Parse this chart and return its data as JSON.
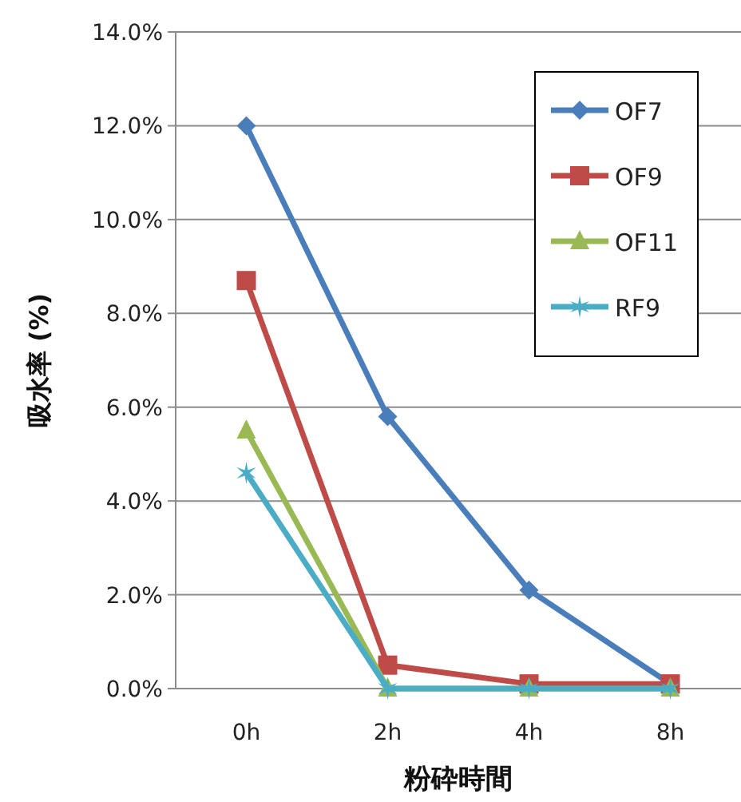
{
  "chart_data": {
    "type": "line",
    "xlabel": "粉砕時間",
    "ylabel": "吸水率 (%)",
    "categories": [
      "0h",
      "2h",
      "4h",
      "8h"
    ],
    "series": [
      {
        "name": "OF7",
        "color": "#4a7ebb",
        "marker": "diamond",
        "values": [
          12.0,
          5.8,
          2.1,
          0.1
        ]
      },
      {
        "name": "OF9",
        "color": "#be4b48",
        "marker": "square",
        "values": [
          8.7,
          0.5,
          0.1,
          0.1
        ]
      },
      {
        "name": "OF11",
        "color": "#98b954",
        "marker": "triangle",
        "values": [
          5.5,
          0.0,
          0.0,
          0.0
        ]
      },
      {
        "name": "RF9",
        "color": "#4bacc6",
        "marker": "cross",
        "values": [
          4.6,
          0.0,
          0.0,
          0.0
        ]
      }
    ],
    "ylim": [
      0,
      14
    ],
    "yticks": [
      {
        "value": 0,
        "label": "0.0%"
      },
      {
        "value": 2,
        "label": "2.0%"
      },
      {
        "value": 4,
        "label": "4.0%"
      },
      {
        "value": 6,
        "label": "6.0%"
      },
      {
        "value": 8,
        "label": "8.0%"
      },
      {
        "value": 10,
        "label": "10.0%"
      },
      {
        "value": 12,
        "label": "12.0%"
      },
      {
        "value": 14,
        "label": "14.0%"
      }
    ],
    "grid": "y",
    "legend": "top right",
    "line_style": "solid"
  }
}
